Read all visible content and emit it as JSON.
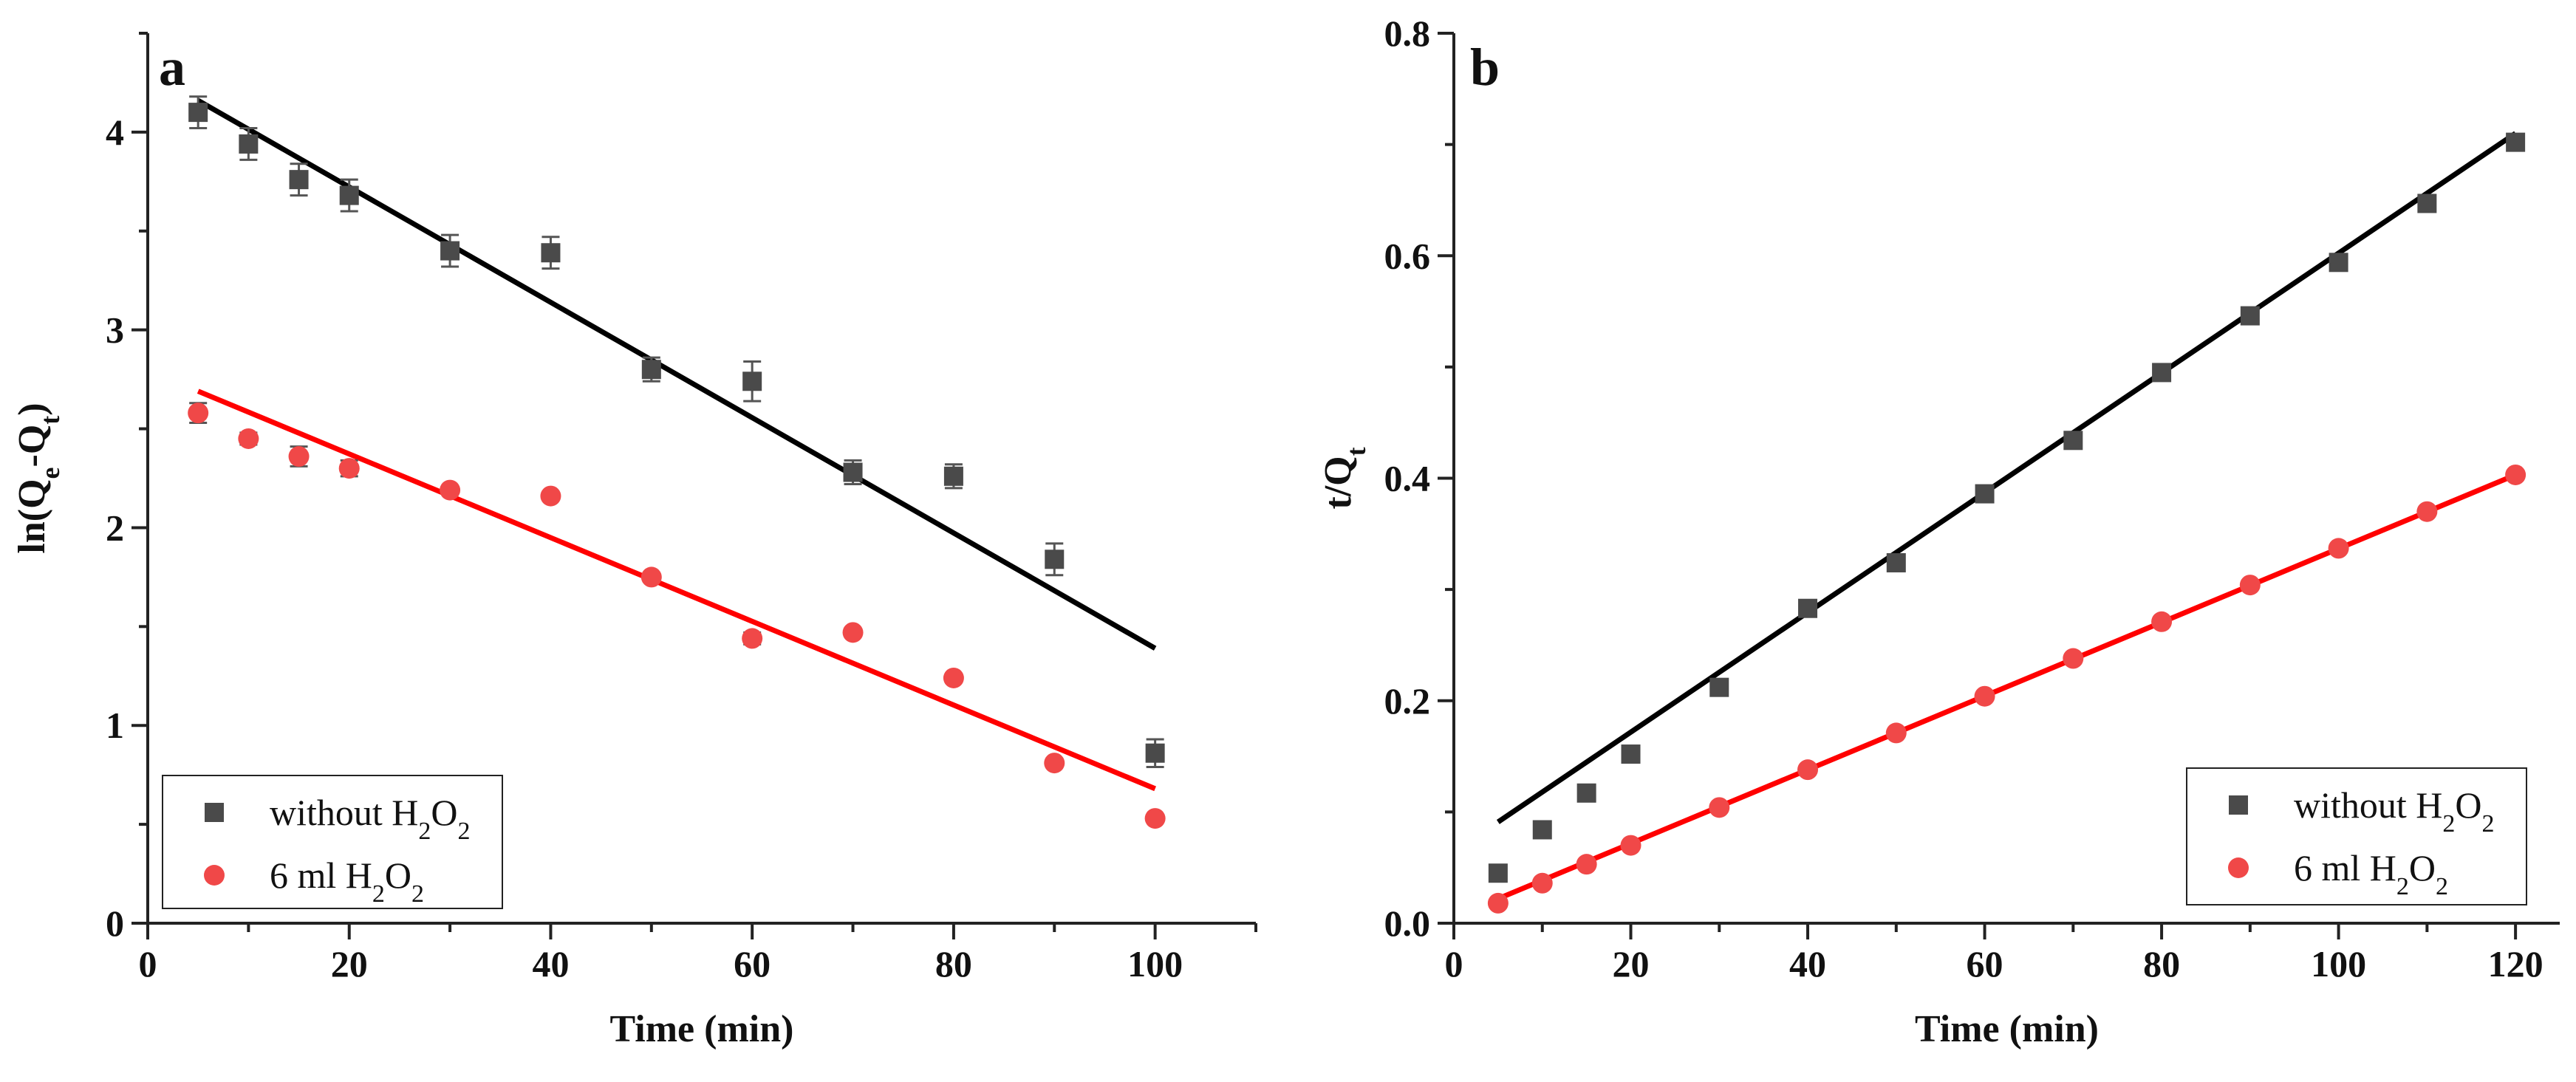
{
  "chart_data": [
    {
      "type": "scatter",
      "panel": "a",
      "title": "",
      "xlabel": "Time (min)",
      "ylabel": "ln(Q",
      "ylabel_sub1": "e",
      "ylabel_mid": "-Q",
      "ylabel_sub2": "t",
      "ylabel_end": ")",
      "xlim": [
        0,
        110
      ],
      "ylim": [
        0,
        4.5
      ],
      "xticks": [
        "0",
        "20",
        "40",
        "60",
        "80",
        "100"
      ],
      "xtick_values": [
        0,
        20,
        40,
        60,
        80,
        100
      ],
      "yticks": [
        "0",
        "1",
        "2",
        "3",
        "4"
      ],
      "ytick_values": [
        0,
        1,
        2,
        3,
        4
      ],
      "legend_position": "bottom-left",
      "series": [
        {
          "name": "without H2O2",
          "label": "without H",
          "label_sub": "2",
          "label_mid": "O",
          "label_sub2": "2",
          "marker": "square",
          "color": "#4a4a4a",
          "fit_color": "#000000",
          "x": [
            5,
            10,
            15,
            20,
            30,
            40,
            50,
            60,
            70,
            80,
            90,
            100
          ],
          "y": [
            4.1,
            3.94,
            3.76,
            3.68,
            3.4,
            3.39,
            2.8,
            2.74,
            2.28,
            2.26,
            1.84,
            0.86
          ],
          "error": [
            0.08,
            0.08,
            0.08,
            0.08,
            0.08,
            0.08,
            0.06,
            0.1,
            0.06,
            0.06,
            0.08,
            0.07
          ],
          "fit": [
            [
              5,
              4.16
            ],
            [
              100,
              1.39
            ]
          ]
        },
        {
          "name": "6 ml H2O2",
          "label": "6 ml  H",
          "label_sub": "2",
          "label_mid": "O",
          "label_sub2": "2",
          "marker": "circle",
          "color": "#f04848",
          "fit_color": "#ff0000",
          "x": [
            5,
            10,
            15,
            20,
            30,
            40,
            50,
            60,
            70,
            80,
            90,
            100
          ],
          "y": [
            2.58,
            2.45,
            2.36,
            2.3,
            2.19,
            2.16,
            1.75,
            1.44,
            1.47,
            1.24,
            0.81,
            0.53
          ],
          "error": [
            0.05,
            0.03,
            0.05,
            0.04,
            0.02,
            0.02,
            0.02,
            0.03,
            0.02,
            0.02,
            0.02,
            0.02
          ],
          "fit": [
            [
              5,
              2.69
            ],
            [
              100,
              0.68
            ]
          ]
        }
      ]
    },
    {
      "type": "scatter",
      "panel": "b",
      "title": "",
      "xlabel": "Time (min)",
      "ylabel": "t/Q",
      "ylabel_sub1": "t",
      "xlim": [
        0,
        125
      ],
      "ylim": [
        0,
        0.8
      ],
      "xticks": [
        "0",
        "20",
        "40",
        "60",
        "80",
        "100",
        "120"
      ],
      "xtick_values": [
        0,
        20,
        40,
        60,
        80,
        100,
        120
      ],
      "yticks": [
        "0.0",
        "0.2",
        "0.4",
        "0.6",
        "0.8"
      ],
      "ytick_values": [
        0,
        0.2,
        0.4,
        0.6,
        0.8
      ],
      "legend_position": "bottom-right",
      "series": [
        {
          "name": "without H2O2",
          "label": "without H",
          "label_sub": "2",
          "label_mid": "O",
          "label_sub2": "2",
          "marker": "square",
          "color": "#4a4a4a",
          "fit_color": "#000000",
          "x": [
            5,
            10,
            15,
            20,
            30,
            40,
            50,
            60,
            70,
            80,
            90,
            100,
            110,
            120
          ],
          "y": [
            0.045,
            0.084,
            0.117,
            0.152,
            0.212,
            0.283,
            0.324,
            0.386,
            0.434,
            0.495,
            0.546,
            0.594,
            0.647,
            0.702
          ],
          "fit": [
            [
              5,
              0.091
            ],
            [
              120,
              0.71
            ]
          ]
        },
        {
          "name": "6 ml H2O2",
          "label": "6 ml  H",
          "label_sub": "2",
          "label_mid": "O",
          "label_sub2": "2",
          "marker": "circle",
          "color": "#f04848",
          "fit_color": "#ff0000",
          "x": [
            5,
            10,
            15,
            20,
            30,
            40,
            50,
            60,
            70,
            80,
            90,
            100,
            110,
            120
          ],
          "y": [
            0.018,
            0.036,
            0.053,
            0.07,
            0.104,
            0.138,
            0.171,
            0.204,
            0.238,
            0.271,
            0.304,
            0.337,
            0.37,
            0.403
          ],
          "fit": [
            [
              5,
              0.022
            ],
            [
              120,
              0.403
            ]
          ]
        }
      ]
    }
  ]
}
